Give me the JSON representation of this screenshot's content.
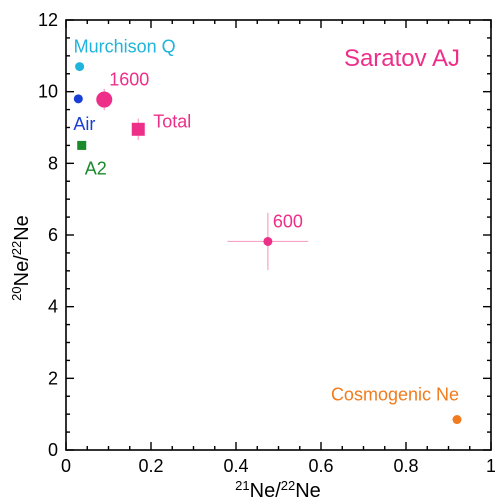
{
  "chart_data": {
    "type": "scatter",
    "title": "Saratov AJ",
    "xlabel": {
      "sup1": "21",
      "base1": "Ne/",
      "sup2": "22",
      "base2": "Ne"
    },
    "ylabel": {
      "sup1": "20",
      "base1": "Ne/",
      "sup2": "22",
      "base2": "Ne"
    },
    "xlim": [
      0,
      1
    ],
    "ylim": [
      0,
      12
    ],
    "xticks": [
      {
        "value": 0,
        "label": "0"
      },
      {
        "value": 0.2,
        "label": "0.2"
      },
      {
        "value": 0.4,
        "label": "0.4"
      },
      {
        "value": 0.6,
        "label": "0.6"
      },
      {
        "value": 0.8,
        "label": "0.8"
      },
      {
        "value": 1,
        "label": "1"
      }
    ],
    "yticks": [
      {
        "value": 0,
        "label": "0"
      },
      {
        "value": 2,
        "label": "2"
      },
      {
        "value": 4,
        "label": "4"
      },
      {
        "value": 6,
        "label": "6"
      },
      {
        "value": 8,
        "label": "8"
      },
      {
        "value": 10,
        "label": "10"
      },
      {
        "value": 12,
        "label": "12"
      }
    ],
    "grid": false,
    "points": [
      {
        "label": "Murchison Q",
        "x": 0.032,
        "y": 10.7,
        "marker": "circle",
        "size": "small",
        "color": "#1fb4dc",
        "label_pos": "above"
      },
      {
        "label": "Air",
        "x": 0.029,
        "y": 9.8,
        "marker": "circle",
        "size": "small",
        "color": "#1a3fd6",
        "label_pos": "below"
      },
      {
        "label": "1600",
        "x": 0.09,
        "y": 9.78,
        "xerr": 0.012,
        "yerr": 0.3,
        "marker": "circle",
        "size": "large",
        "color": "#ee2f8a",
        "label_pos": "above-right"
      },
      {
        "label": "Total",
        "x": 0.17,
        "y": 8.95,
        "xerr": 0.008,
        "yerr": 0.3,
        "marker": "square",
        "size": "medium",
        "color": "#ee2f8a",
        "label_pos": "right"
      },
      {
        "label": "A2",
        "x": 0.037,
        "y": 8.5,
        "marker": "square",
        "size": "small",
        "color": "#1b8a2a",
        "label_pos": "below-right"
      },
      {
        "label": "600",
        "x": 0.475,
        "y": 5.82,
        "xerr": 0.095,
        "yerr": 0.8,
        "marker": "circle",
        "size": "small",
        "color": "#ee2f8a",
        "label_pos": "above-right"
      },
      {
        "label": "Cosmogenic Ne",
        "x": 0.92,
        "y": 0.85,
        "marker": "circle",
        "size": "small",
        "color": "#f07c1e",
        "label_pos": "above-left"
      }
    ],
    "colors": {
      "title": "#ee2f8a",
      "axis": "#000000",
      "errorbar": "#f6a3c8"
    }
  }
}
